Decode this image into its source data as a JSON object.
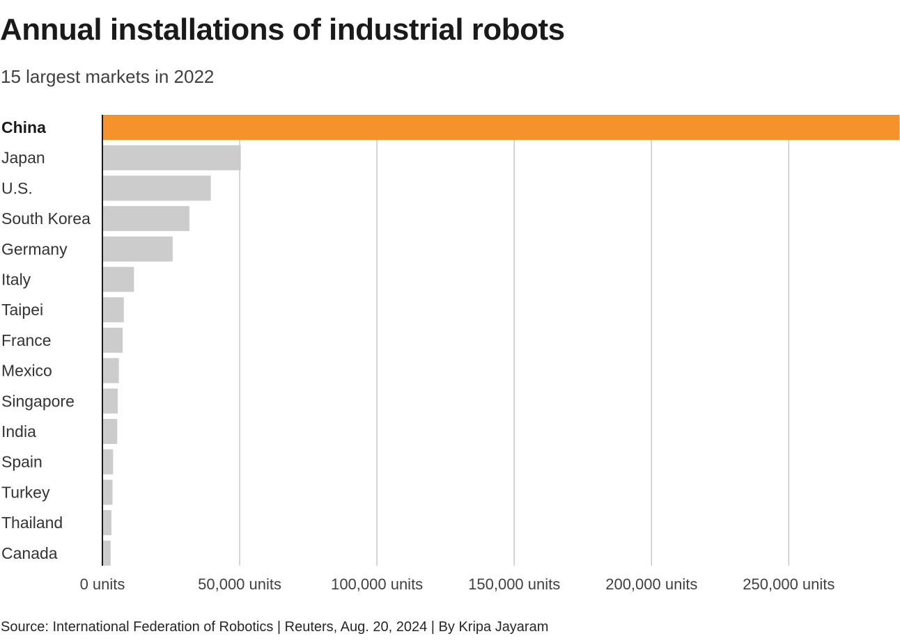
{
  "header": {
    "title": "Annual installations of industrial robots",
    "subtitle": "15 largest markets in 2022"
  },
  "footer": {
    "source": "Source: International Federation of Robotics | Reuters, Aug. 20, 2024 | By Kripa Jayaram"
  },
  "colors": {
    "highlight": "#f5922b",
    "bar": "#cccccc",
    "grid": "#c8c8c8",
    "axis": "#1a1a1a"
  },
  "chart_data": {
    "type": "bar",
    "orientation": "horizontal",
    "title": "Annual installations of industrial robots",
    "subtitle": "15 largest markets in 2022",
    "xlabel": "",
    "ylabel": "",
    "xlim": [
      0,
      290000
    ],
    "grid": true,
    "highlight": "China",
    "categories": [
      "China",
      "Japan",
      "U.S.",
      "South Korea",
      "Germany",
      "Italy",
      "Taipei",
      "France",
      "Mexico",
      "Singapore",
      "India",
      "Spain",
      "Turkey",
      "Thailand",
      "Canada"
    ],
    "values": [
      290300,
      50400,
      39500,
      31700,
      25600,
      11500,
      7800,
      7400,
      6000,
      5600,
      5400,
      3900,
      3700,
      3300,
      3000
    ],
    "ticks": [
      0,
      50000,
      100000,
      150000,
      200000,
      250000
    ],
    "tick_labels": [
      "0 units",
      "50,000 units",
      "100,000 units",
      "150,000 units",
      "200,000 units",
      "250,000 units"
    ]
  }
}
